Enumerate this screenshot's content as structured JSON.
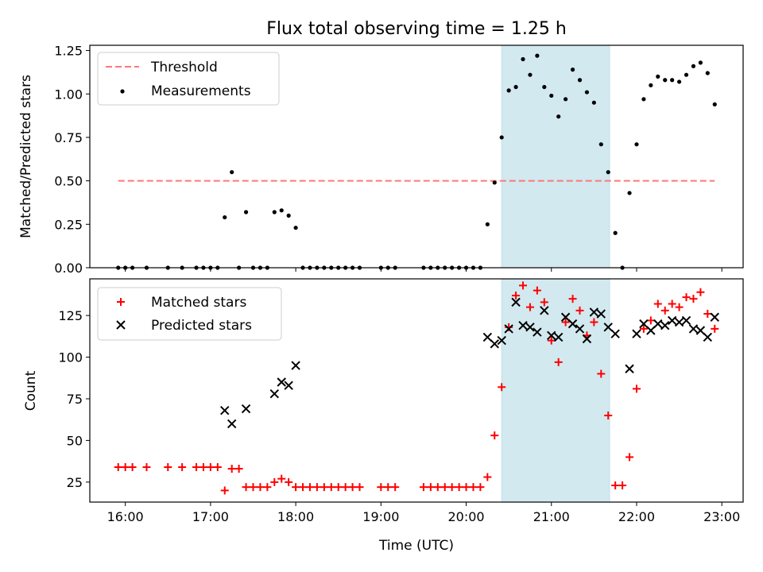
{
  "chart_data": {
    "type": "scatter",
    "title": "Flux total observing time = 1.25 h",
    "xlabel": "Time (UTC)",
    "x_ticks": [
      "16:00",
      "17:00",
      "18:00",
      "19:00",
      "20:00",
      "21:00",
      "22:00",
      "23:00"
    ],
    "highlight_span": {
      "start": "20:25",
      "end": "21:41",
      "color": "#d2e9f0"
    },
    "panels": [
      {
        "ylabel": "Matched/Predicted stars",
        "ylim": [
          0,
          1.28
        ],
        "y_ticks": [
          "0.00",
          "0.25",
          "0.50",
          "0.75",
          "1.00",
          "1.25"
        ],
        "legend_position": "upper left",
        "series": [
          {
            "name": "Threshold",
            "kind": "dashed-line",
            "color": "#ff7777",
            "points": [
              [
                "15:55",
                0.5
              ],
              [
                "22:55",
                0.5
              ]
            ]
          },
          {
            "name": "Measurements",
            "kind": "dot",
            "color": "#000000",
            "points": [
              [
                "15:55",
                0
              ],
              [
                "16:00",
                0
              ],
              [
                "16:05",
                0
              ],
              [
                "16:15",
                0
              ],
              [
                "16:30",
                0
              ],
              [
                "16:40",
                0
              ],
              [
                "16:50",
                0
              ],
              [
                "16:55",
                0
              ],
              [
                "17:00",
                0
              ],
              [
                "17:05",
                0
              ],
              [
                "17:10",
                0.29
              ],
              [
                "17:15",
                0.55
              ],
              [
                "17:20",
                0
              ],
              [
                "17:25",
                0.32
              ],
              [
                "17:30",
                0
              ],
              [
                "17:35",
                0
              ],
              [
                "17:40",
                0
              ],
              [
                "17:45",
                0.32
              ],
              [
                "17:50",
                0.33
              ],
              [
                "17:55",
                0.3
              ],
              [
                "18:00",
                0.23
              ],
              [
                "18:05",
                0
              ],
              [
                "18:10",
                0
              ],
              [
                "18:15",
                0
              ],
              [
                "18:20",
                0
              ],
              [
                "18:25",
                0
              ],
              [
                "18:30",
                0
              ],
              [
                "18:35",
                0
              ],
              [
                "18:40",
                0
              ],
              [
                "18:45",
                0
              ],
              [
                "19:00",
                0
              ],
              [
                "19:05",
                0
              ],
              [
                "19:10",
                0
              ],
              [
                "19:30",
                0
              ],
              [
                "19:35",
                0
              ],
              [
                "19:40",
                0
              ],
              [
                "19:45",
                0
              ],
              [
                "19:50",
                0
              ],
              [
                "19:55",
                0
              ],
              [
                "20:00",
                0
              ],
              [
                "20:05",
                0
              ],
              [
                "20:10",
                0
              ],
              [
                "20:15",
                0.25
              ],
              [
                "20:20",
                0.49
              ],
              [
                "20:25",
                0.75
              ],
              [
                "20:30",
                1.02
              ],
              [
                "20:35",
                1.04
              ],
              [
                "20:40",
                1.2
              ],
              [
                "20:45",
                1.11
              ],
              [
                "20:50",
                1.22
              ],
              [
                "20:55",
                1.04
              ],
              [
                "21:00",
                0.99
              ],
              [
                "21:05",
                0.87
              ],
              [
                "21:10",
                0.97
              ],
              [
                "21:15",
                1.14
              ],
              [
                "21:20",
                1.08
              ],
              [
                "21:25",
                1.01
              ],
              [
                "21:30",
                0.95
              ],
              [
                "21:35",
                0.71
              ],
              [
                "21:40",
                0.55
              ],
              [
                "21:45",
                0.2
              ],
              [
                "21:50",
                0
              ],
              [
                "21:55",
                0.43
              ],
              [
                "22:00",
                0.71
              ],
              [
                "22:05",
                0.97
              ],
              [
                "22:10",
                1.05
              ],
              [
                "22:15",
                1.1
              ],
              [
                "22:20",
                1.08
              ],
              [
                "22:25",
                1.08
              ],
              [
                "22:30",
                1.07
              ],
              [
                "22:35",
                1.11
              ],
              [
                "22:40",
                1.16
              ],
              [
                "22:45",
                1.18
              ],
              [
                "22:50",
                1.12
              ],
              [
                "22:55",
                0.94
              ]
            ]
          }
        ]
      },
      {
        "ylabel": "Count",
        "ylim": [
          13,
          147
        ],
        "y_ticks": [
          "25",
          "50",
          "75",
          "100",
          "125"
        ],
        "legend_position": "upper left",
        "series": [
          {
            "name": "Matched stars",
            "kind": "plus",
            "color": "#ff0000",
            "points": [
              [
                "15:55",
                34
              ],
              [
                "16:00",
                34
              ],
              [
                "16:05",
                34
              ],
              [
                "16:15",
                34
              ],
              [
                "16:30",
                34
              ],
              [
                "16:40",
                34
              ],
              [
                "16:50",
                34
              ],
              [
                "16:55",
                34
              ],
              [
                "17:00",
                34
              ],
              [
                "17:05",
                34
              ],
              [
                "17:10",
                20
              ],
              [
                "17:15",
                33
              ],
              [
                "17:20",
                33
              ],
              [
                "17:25",
                22
              ],
              [
                "17:30",
                22
              ],
              [
                "17:35",
                22
              ],
              [
                "17:40",
                22
              ],
              [
                "17:45",
                25
              ],
              [
                "17:50",
                27
              ],
              [
                "17:55",
                25
              ],
              [
                "18:00",
                22
              ],
              [
                "18:05",
                22
              ],
              [
                "18:10",
                22
              ],
              [
                "18:15",
                22
              ],
              [
                "18:20",
                22
              ],
              [
                "18:25",
                22
              ],
              [
                "18:30",
                22
              ],
              [
                "18:35",
                22
              ],
              [
                "18:40",
                22
              ],
              [
                "18:45",
                22
              ],
              [
                "19:00",
                22
              ],
              [
                "19:05",
                22
              ],
              [
                "19:10",
                22
              ],
              [
                "19:30",
                22
              ],
              [
                "19:35",
                22
              ],
              [
                "19:40",
                22
              ],
              [
                "19:45",
                22
              ],
              [
                "19:50",
                22
              ],
              [
                "19:55",
                22
              ],
              [
                "20:00",
                22
              ],
              [
                "20:05",
                22
              ],
              [
                "20:10",
                22
              ],
              [
                "20:15",
                28
              ],
              [
                "20:20",
                53
              ],
              [
                "20:25",
                82
              ],
              [
                "20:30",
                118
              ],
              [
                "20:35",
                137
              ],
              [
                "20:40",
                143
              ],
              [
                "20:45",
                130
              ],
              [
                "20:50",
                140
              ],
              [
                "20:55",
                133
              ],
              [
                "21:00",
                110
              ],
              [
                "21:05",
                97
              ],
              [
                "21:10",
                121
              ],
              [
                "21:15",
                135
              ],
              [
                "21:20",
                128
              ],
              [
                "21:25",
                113
              ],
              [
                "21:30",
                121
              ],
              [
                "21:35",
                90
              ],
              [
                "21:40",
                65
              ],
              [
                "21:45",
                23
              ],
              [
                "21:50",
                23
              ],
              [
                "21:55",
                40
              ],
              [
                "22:00",
                81
              ],
              [
                "22:05",
                117
              ],
              [
                "22:10",
                122
              ],
              [
                "22:15",
                132
              ],
              [
                "22:20",
                128
              ],
              [
                "22:25",
                132
              ],
              [
                "22:30",
                130
              ],
              [
                "22:35",
                136
              ],
              [
                "22:40",
                135
              ],
              [
                "22:45",
                139
              ],
              [
                "22:50",
                126
              ],
              [
                "22:55",
                117
              ]
            ]
          },
          {
            "name": "Predicted stars",
            "kind": "x",
            "color": "#000000",
            "points": [
              [
                "17:10",
                68
              ],
              [
                "17:15",
                60
              ],
              [
                "17:25",
                69
              ],
              [
                "17:45",
                78
              ],
              [
                "17:50",
                85
              ],
              [
                "17:55",
                83
              ],
              [
                "18:00",
                95
              ],
              [
                "20:15",
                112
              ],
              [
                "20:20",
                108
              ],
              [
                "20:25",
                110
              ],
              [
                "20:30",
                117
              ],
              [
                "20:35",
                133
              ],
              [
                "20:40",
                119
              ],
              [
                "20:45",
                118
              ],
              [
                "20:50",
                115
              ],
              [
                "20:55",
                128
              ],
              [
                "21:00",
                113
              ],
              [
                "21:05",
                112
              ],
              [
                "21:10",
                124
              ],
              [
                "21:15",
                120
              ],
              [
                "21:20",
                117
              ],
              [
                "21:25",
                111
              ],
              [
                "21:30",
                127
              ],
              [
                "21:35",
                126
              ],
              [
                "21:40",
                118
              ],
              [
                "21:45",
                114
              ],
              [
                "21:55",
                93
              ],
              [
                "22:00",
                114
              ],
              [
                "22:05",
                120
              ],
              [
                "22:10",
                116
              ],
              [
                "22:15",
                120
              ],
              [
                "22:20",
                119
              ],
              [
                "22:25",
                122
              ],
              [
                "22:30",
                121
              ],
              [
                "22:35",
                122
              ],
              [
                "22:40",
                117
              ],
              [
                "22:45",
                116
              ],
              [
                "22:50",
                112
              ],
              [
                "22:55",
                124
              ]
            ]
          }
        ]
      }
    ]
  }
}
